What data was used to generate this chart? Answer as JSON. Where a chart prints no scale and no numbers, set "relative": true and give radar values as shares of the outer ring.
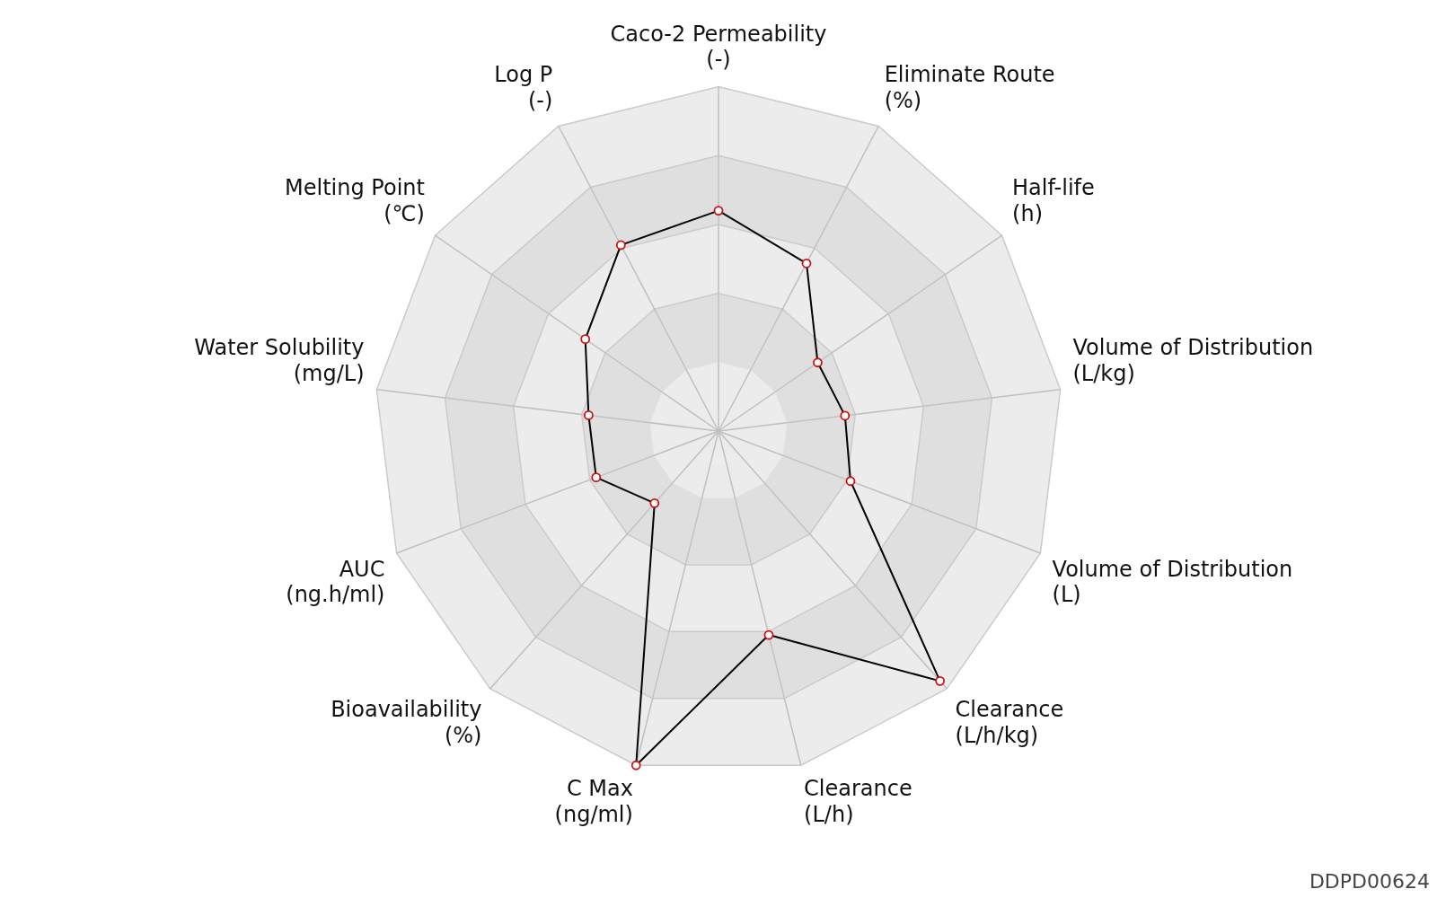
{
  "chart_data": {
    "type": "radar",
    "relative": true,
    "categories": [
      "Caco-2 Permeability\n(-)",
      "Eliminate Route\n(%)",
      "Half-life\n(h)",
      "Volume of Distribution\n(L/kg)",
      "Volume of Distribution\n(L)",
      "Clearance\n(L/h/kg)",
      "Clearance\n(L/h)",
      "C Max\n(ng/ml)",
      "Bioavailability\n(%)",
      "AUC\n(ng.h/ml)",
      "Water Solubility\n(mg/L)",
      "Melting Point\n(℃)",
      "Log P\n(-)"
    ],
    "series": [
      {
        "color": "#000000",
        "values": [
          0.64,
          0.55,
          0.35,
          0.37,
          0.41,
          0.97,
          0.61,
          1.0,
          0.28,
          0.38,
          0.38,
          0.47,
          0.61
        ]
      }
    ],
    "marker": "circle",
    "legend": false,
    "grid": true,
    "annotations": [
      "DDPD00624"
    ]
  }
}
